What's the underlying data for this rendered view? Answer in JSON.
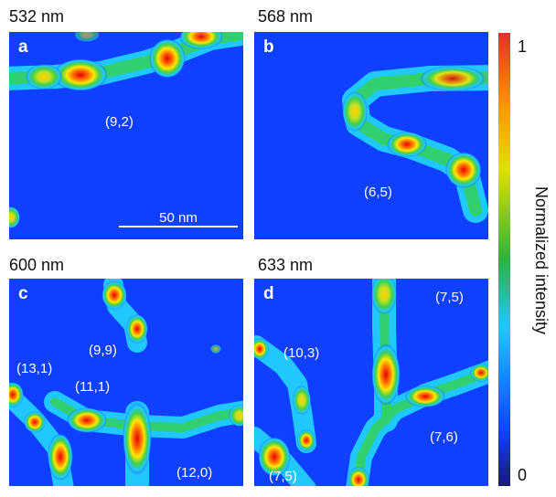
{
  "panels": [
    {
      "letter": "a",
      "wavelength": "532 nm",
      "annotations": [
        "(9,2)"
      ],
      "scale_bar": "50 nm"
    },
    {
      "letter": "b",
      "wavelength": "568 nm",
      "annotations": [
        "(6,5)"
      ]
    },
    {
      "letter": "c",
      "wavelength": "600 nm",
      "annotations": [
        "(9,9)",
        "(13,1)",
        "(11,1)",
        "(12,0)"
      ]
    },
    {
      "letter": "d",
      "wavelength": "633 nm",
      "annotations": [
        "(7,5)",
        "(10,3)",
        "(7,6)",
        "(7,5)"
      ]
    }
  ],
  "colorbar": {
    "label": "Normalized intensity",
    "max_label": "1",
    "min_label": "0"
  }
}
